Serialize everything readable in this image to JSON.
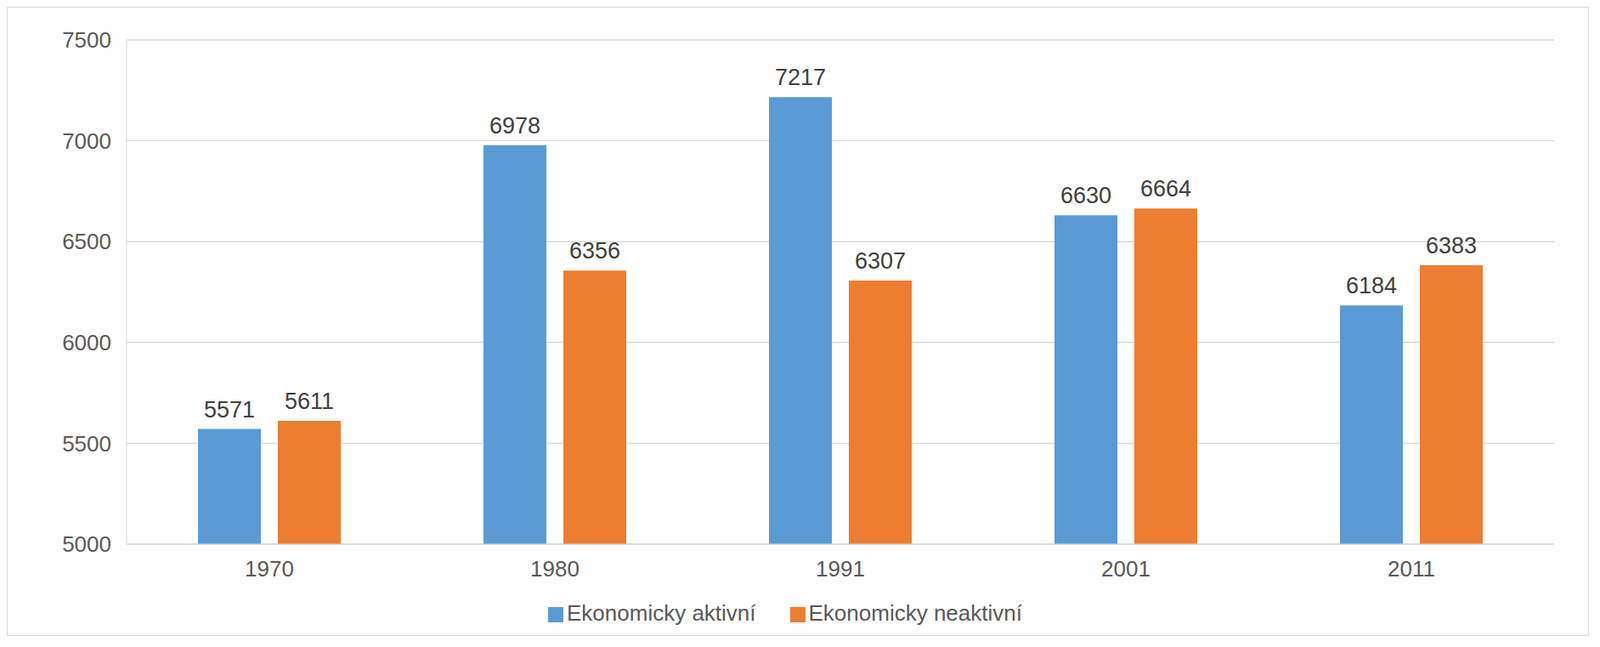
{
  "chart_data": {
    "type": "bar",
    "categories": [
      "1970",
      "1980",
      "1991",
      "2001",
      "2011"
    ],
    "series": [
      {
        "name": "Ekonomicky aktivní",
        "color": "#5b9bd5",
        "values": [
          5571,
          6978,
          7217,
          6630,
          6184
        ]
      },
      {
        "name": "Ekonomicky neaktivní",
        "color": "#ed7d31",
        "values": [
          5611,
          6356,
          6307,
          6664,
          6383
        ]
      }
    ],
    "ylim": [
      5000,
      7500
    ],
    "yticks": [
      5000,
      5500,
      6000,
      6500,
      7000,
      7500
    ],
    "grid": true,
    "data_labels": true,
    "legend": "bottom"
  }
}
